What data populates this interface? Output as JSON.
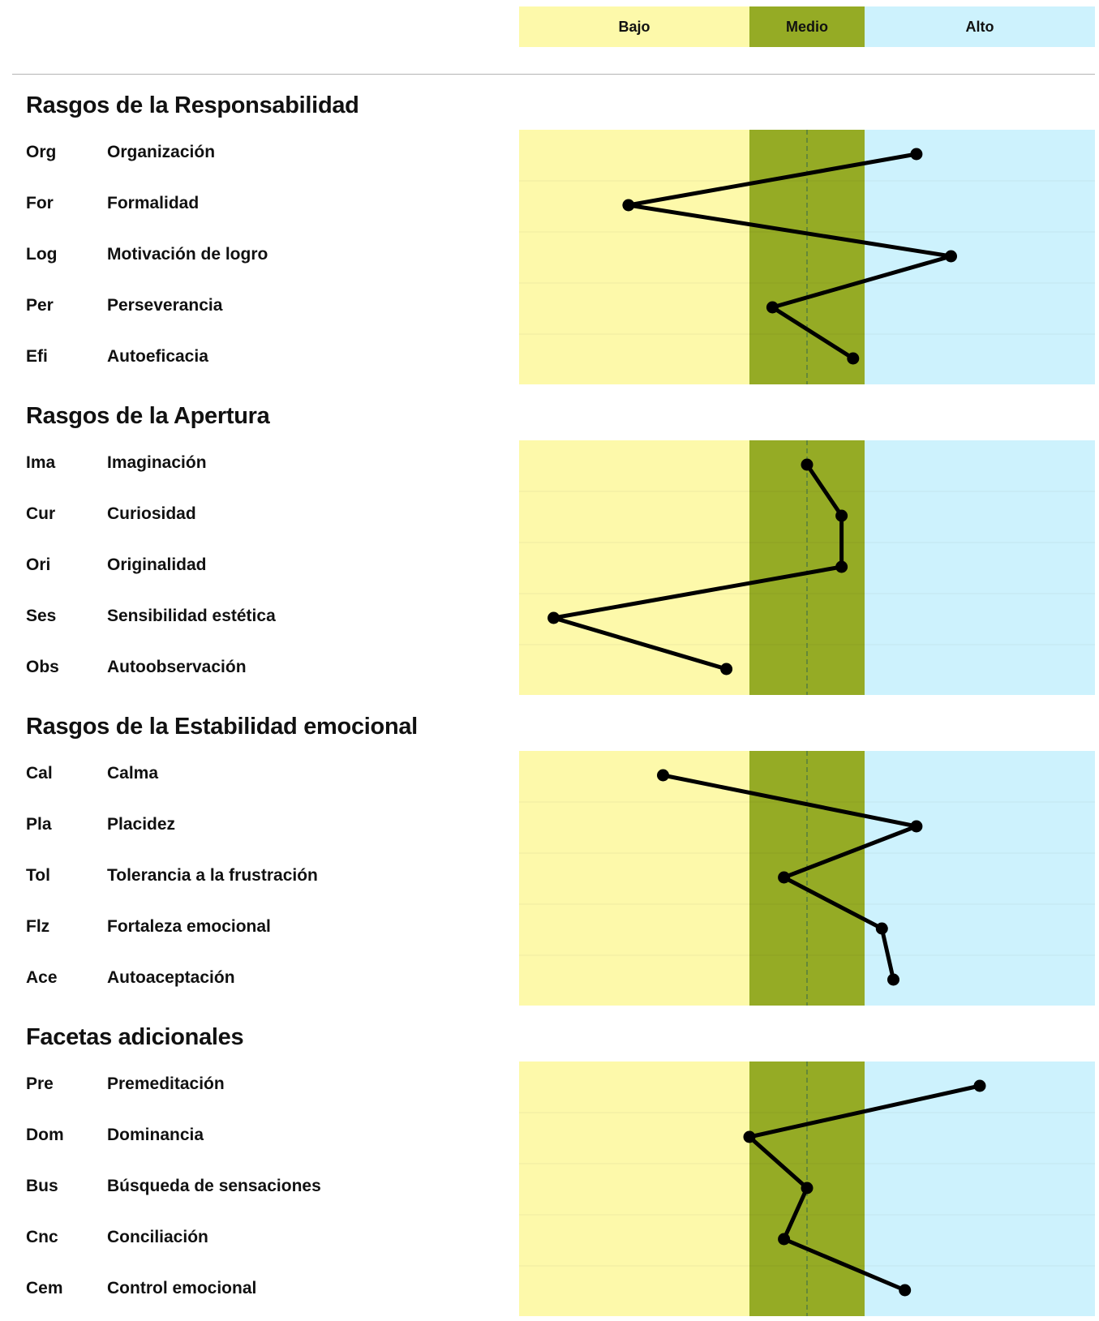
{
  "levels": {
    "low": "Bajo",
    "mid": "Medio",
    "high": "Alto"
  },
  "colors": {
    "low": "#fdf9aa",
    "mid": "#95ab25",
    "high": "#cdf2fd",
    "line": "#000000",
    "dashed": "#4f7a40"
  },
  "chart_data": [
    {
      "type": "line",
      "title": "Rasgos de la Responsabilidad",
      "categories": [
        "Org",
        "For",
        "Log",
        "Per",
        "Efi"
      ],
      "category_names": [
        "Organización",
        "Formalidad",
        "Motivación de logro",
        "Perseverancia",
        "Autoeficacia"
      ],
      "values": [
        0.69,
        0.19,
        0.75,
        0.44,
        0.58
      ],
      "bands": [
        "Bajo",
        "Medio",
        "Alto"
      ],
      "band_bounds": [
        0.4,
        0.6
      ],
      "xlim": [
        0,
        1
      ]
    },
    {
      "type": "line",
      "title": "Rasgos de la Apertura",
      "categories": [
        "Ima",
        "Cur",
        "Ori",
        "Ses",
        "Obs"
      ],
      "category_names": [
        "Imaginación",
        "Curiosidad",
        "Originalidad",
        "Sensibilidad estética",
        "Autoobservación"
      ],
      "values": [
        0.5,
        0.56,
        0.56,
        0.06,
        0.36
      ],
      "bands": [
        "Bajo",
        "Medio",
        "Alto"
      ],
      "band_bounds": [
        0.4,
        0.6
      ],
      "xlim": [
        0,
        1
      ]
    },
    {
      "type": "line",
      "title": "Rasgos de la Estabilidad emocional",
      "categories": [
        "Cal",
        "Pla",
        "Tol",
        "Flz",
        "Ace"
      ],
      "category_names": [
        "Calma",
        "Placidez",
        "Tolerancia a la frustración",
        "Fortaleza emocional",
        "Autoaceptación"
      ],
      "values": [
        0.25,
        0.69,
        0.46,
        0.63,
        0.65
      ],
      "bands": [
        "Bajo",
        "Medio",
        "Alto"
      ],
      "band_bounds": [
        0.4,
        0.6
      ],
      "xlim": [
        0,
        1
      ]
    },
    {
      "type": "line",
      "title": "Facetas adicionales",
      "categories": [
        "Pre",
        "Dom",
        "Bus",
        "Cnc",
        "Cem"
      ],
      "category_names": [
        "Premeditación",
        "Dominancia",
        "Búsqueda de sensaciones",
        "Conciliación",
        "Control emocional"
      ],
      "values": [
        0.8,
        0.4,
        0.5,
        0.46,
        0.67
      ],
      "bands": [
        "Bajo",
        "Medio",
        "Alto"
      ],
      "band_bounds": [
        0.4,
        0.6
      ],
      "xlim": [
        0,
        1
      ]
    }
  ]
}
